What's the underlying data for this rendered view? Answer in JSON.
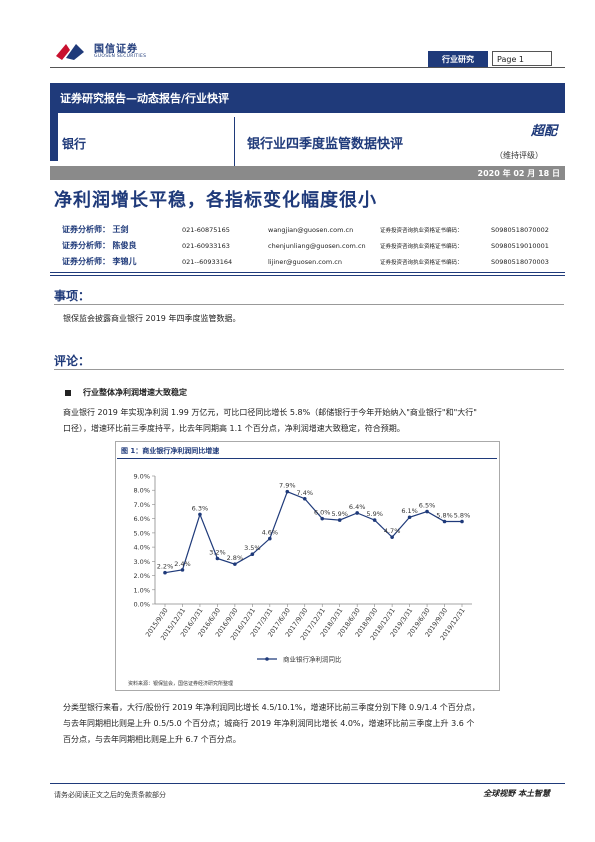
{
  "header": {
    "logo_cn": "国信证券",
    "logo_en": "GUOSEN SECURITIES",
    "tag": "行业研究",
    "page": "Page 1"
  },
  "report": {
    "category": "证券研究报告—动态报告/行业快评",
    "sector": "银行",
    "subtitle": "银行业四季度监管数据快评",
    "rating": "超配",
    "rating_sub": "（维持评级）",
    "date": "2020 年 02 月 18 日",
    "headline": "净利润增长平稳，各指标变化幅度很小"
  },
  "analysts": [
    {
      "role": "证券分析师：",
      "name": "王剑",
      "tel": "021-60875165",
      "email": "wangjian@guosen.com.cn",
      "license_label": "证券投资咨询执业资格证书编码：",
      "license": "S0980518070002"
    },
    {
      "role": "证券分析师：",
      "name": "陈俊良",
      "tel": "021-60933163",
      "email": "chenjunliang@guosen.com.cn",
      "license_label": "证券投资咨询执业资格证书编码：",
      "license": "S0980519010001"
    },
    {
      "role": "证券分析师：",
      "name": "李锦儿",
      "tel": "021--60933164",
      "email": "lijiner@guosen.com.cn",
      "license_label": "证券投资咨询执业资格证书编码：",
      "license": "S0980518070003"
    }
  ],
  "sections": {
    "matter_head": "事项：",
    "matter_text": "银保监会披露商业银行 2019 年四季度监管数据。",
    "comment_head": "评论：",
    "bullet1": "行业整体净利润增速大致稳定",
    "para1_line1": "商业银行 2019 年实现净利润 1.99 万亿元，可比口径同比增长 5.8%（邮储银行于今年开始纳入\"商业银行\"和\"大行\"",
    "para1_line2": "口径），增速环比前三季度持平，比去年同期高 1.1 个百分点，净利润增速大致稳定，符合预期。",
    "para2_line1": "分类型银行来看，大行/股份行 2019 年净利润同比增长 4.5/10.1%，增速环比前三季度分别下降 0.9/1.4 个百分点，",
    "para2_line2": "与去年同期相比则是上升 0.5/5.0 个百分点；城商行 2019 年净利润同比增长 4.0%，增速环比前三季度上升 3.6 个",
    "para2_line3": "百分点，与去年同期相比则是上升 6.7 个百分点。"
  },
  "figure": {
    "title": "图 1：商业银行净利润同比增速",
    "source": "资料来源：银保监会，国信证券经济研究所整理"
  },
  "chart_data": {
    "type": "line",
    "title": "",
    "x": [
      "2015/9/30",
      "2015/12/31",
      "2016/3/31",
      "2016/6/30",
      "2016/9/30",
      "2016/12/31",
      "2017/3/31",
      "2017/6/30",
      "2017/9/30",
      "2017/12/31",
      "2018/3/31",
      "2018/6/30",
      "2018/9/30",
      "2018/12/31",
      "2019/3/31",
      "2019/6/30",
      "2019/9/30",
      "2019/12/31"
    ],
    "series": [
      {
        "name": "商业银行净利润同比",
        "values": [
          2.2,
          2.4,
          6.3,
          3.2,
          2.8,
          3.5,
          4.6,
          7.9,
          7.4,
          6.0,
          5.9,
          6.4,
          5.9,
          4.7,
          6.1,
          6.5,
          5.8,
          5.8
        ]
      }
    ],
    "data_labels": [
      "2.2%",
      "2.4%",
      "6.3%",
      "3.2%",
      "2.8%",
      "3.5%",
      "4.6%",
      "7.9%",
      "7.4%",
      "6.0%",
      "5.9%",
      "6.4%",
      "5.9%",
      "4.7%",
      "6.1%",
      "6.5%",
      "5.8%",
      "5.8%"
    ],
    "y_ticks": [
      "0.0%",
      "1.0%",
      "2.0%",
      "3.0%",
      "4.0%",
      "5.0%",
      "6.0%",
      "7.0%",
      "8.0%",
      "9.0%"
    ],
    "ylim": [
      0,
      9
    ],
    "grid": false,
    "legend_position": "bottom",
    "series_color": "#1f3a7a"
  },
  "footer": {
    "left": "请务必阅读正文之后的免责条款部分",
    "right": "全球视野  本土智慧"
  }
}
